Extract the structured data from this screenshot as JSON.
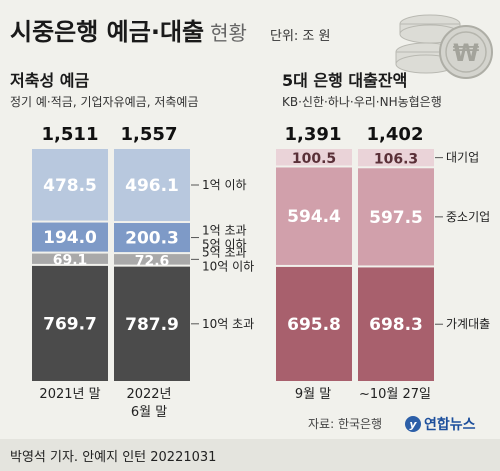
{
  "header": {
    "title_main": "시중은행 예금·대출",
    "title_sub": "현황",
    "unit": "단위: 조 원"
  },
  "colors": {
    "background": "#f1f1ec",
    "deposit_top": "#b8c8de",
    "deposit_mid": "#7e9ac7",
    "deposit_gray": "#a9a9a9",
    "deposit_bottom": "#4b4b4b",
    "loan_top": "#ead3d8",
    "loan_mid": "#d1a0ab",
    "loan_bottom": "#a8606d"
  },
  "chart_data": [
    {
      "type": "bar",
      "stacked": true,
      "title": "저축성 예금",
      "subtitle": "정기 예·적금, 기업자유예금, 저축예금",
      "categories": [
        "2021년 말",
        "2022년\n6월 말"
      ],
      "totals": [
        "1,511",
        "1,557"
      ],
      "series": [
        {
          "name": "10억 초과",
          "values": [
            769.7,
            787.9
          ]
        },
        {
          "name": "5억 초과\n10억 이하",
          "values": [
            69.1,
            72.6
          ]
        },
        {
          "name": "1억 초과\n5억 이하",
          "values": [
            194.0,
            200.3
          ]
        },
        {
          "name": "1억 이하",
          "values": [
            478.5,
            496.1
          ]
        }
      ]
    },
    {
      "type": "bar",
      "stacked": true,
      "title": "5대 은행 대출잔액",
      "subtitle": "KB·신한·하나·우리·NH농협은행",
      "categories": [
        "9월 말",
        "~10월 27일"
      ],
      "totals": [
        "1,391",
        "1,402"
      ],
      "series": [
        {
          "name": "가계대출",
          "values": [
            695.8,
            698.3
          ]
        },
        {
          "name": "중소기업",
          "values": [
            594.4,
            597.5
          ]
        },
        {
          "name": "대기업",
          "values": [
            100.5,
            106.3
          ]
        }
      ]
    }
  ],
  "source": "자료: 한국은행",
  "logo_text": "연합뉴스",
  "byline": "박영석 기자. 안예지 인턴  20221031"
}
